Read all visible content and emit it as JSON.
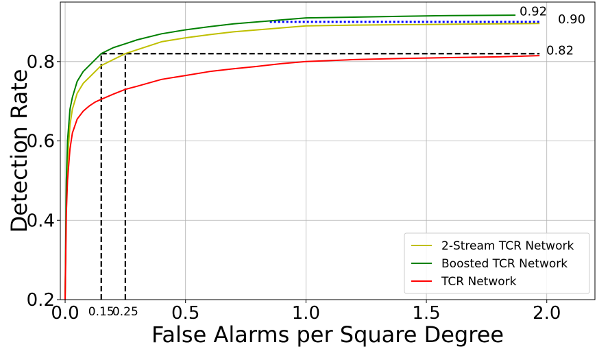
{
  "chart_data": {
    "type": "line",
    "title": "",
    "xlabel": "False Alarms per Square Degree",
    "ylabel": "Detection Rate",
    "xlim": [
      -0.02,
      2.2
    ],
    "ylim": [
      0.2,
      0.95
    ],
    "xticks": [
      {
        "value": 0.0,
        "label": "0.0"
      },
      {
        "value": 0.5,
        "label": "0.5"
      },
      {
        "value": 1.0,
        "label": "1.0"
      },
      {
        "value": 1.5,
        "label": "1.5"
      },
      {
        "value": 2.0,
        "label": "2.0"
      }
    ],
    "yticks": [
      {
        "value": 0.2,
        "label": "0.2"
      },
      {
        "value": 0.4,
        "label": "0.4"
      },
      {
        "value": 0.6,
        "label": "0.6"
      },
      {
        "value": 0.8,
        "label": "0.8"
      }
    ],
    "grid": true,
    "legend_position": "bottom-right",
    "series": [
      {
        "name": "2-Stream TCR Network",
        "color": "#bfbf00",
        "x": [
          0.0,
          0.005,
          0.01,
          0.02,
          0.03,
          0.05,
          0.075,
          0.1,
          0.125,
          0.15,
          0.2,
          0.25,
          0.3,
          0.4,
          0.5,
          0.6,
          0.7,
          0.8,
          0.9,
          1.0,
          1.2,
          1.4,
          1.6,
          1.8,
          1.97
        ],
        "y": [
          0.2,
          0.45,
          0.55,
          0.64,
          0.68,
          0.72,
          0.745,
          0.76,
          0.775,
          0.79,
          0.805,
          0.82,
          0.83,
          0.85,
          0.86,
          0.868,
          0.875,
          0.88,
          0.885,
          0.89,
          0.892,
          0.893,
          0.894,
          0.895,
          0.896
        ]
      },
      {
        "name": "Boosted TCR Network",
        "color": "#008000",
        "x": [
          0.0,
          0.005,
          0.01,
          0.02,
          0.03,
          0.05,
          0.075,
          0.1,
          0.125,
          0.15,
          0.2,
          0.25,
          0.3,
          0.4,
          0.5,
          0.6,
          0.7,
          0.8,
          0.9,
          1.0,
          1.2,
          1.4,
          1.6,
          1.87
        ],
        "y": [
          0.2,
          0.5,
          0.6,
          0.68,
          0.71,
          0.75,
          0.775,
          0.79,
          0.805,
          0.82,
          0.835,
          0.845,
          0.855,
          0.87,
          0.88,
          0.888,
          0.895,
          0.9,
          0.905,
          0.91,
          0.912,
          0.914,
          0.916,
          0.917
        ]
      },
      {
        "name": "TCR Network",
        "color": "#ff0000",
        "x": [
          0.0,
          0.005,
          0.01,
          0.02,
          0.03,
          0.05,
          0.075,
          0.1,
          0.125,
          0.15,
          0.2,
          0.25,
          0.3,
          0.4,
          0.5,
          0.6,
          0.7,
          0.8,
          0.9,
          1.0,
          1.2,
          1.4,
          1.6,
          1.8,
          1.97
        ],
        "y": [
          0.2,
          0.42,
          0.5,
          0.58,
          0.62,
          0.655,
          0.675,
          0.688,
          0.698,
          0.705,
          0.718,
          0.73,
          0.738,
          0.755,
          0.765,
          0.775,
          0.782,
          0.788,
          0.795,
          0.8,
          0.805,
          0.808,
          0.81,
          0.812,
          0.815
        ]
      }
    ],
    "reference_lines": [
      {
        "style": "dashed",
        "color": "#000000",
        "x": [
          0.15,
          1.97
        ],
        "y": [
          0.82,
          0.82
        ]
      },
      {
        "style": "dashed",
        "color": "#000000",
        "x": [
          0.15,
          0.15
        ],
        "y": [
          0.2,
          0.82
        ]
      },
      {
        "style": "dashed",
        "color": "#000000",
        "x": [
          0.25,
          0.25
        ],
        "y": [
          0.2,
          0.82
        ]
      },
      {
        "style": "dotted",
        "color": "#0000ff",
        "x": [
          0.85,
          1.97
        ],
        "y": [
          0.9,
          0.9
        ]
      }
    ],
    "annotations": [
      {
        "text": "0.92",
        "x": 1.9,
        "y": 0.92
      },
      {
        "text": "0.90",
        "x": 2.0,
        "y": 0.9
      },
      {
        "text": "0.82",
        "x": 2.0,
        "y": 0.825
      },
      {
        "text": "0.15",
        "x": 0.15,
        "y": 0.2
      },
      {
        "text": "0.25",
        "x": 0.25,
        "y": 0.2
      }
    ]
  }
}
